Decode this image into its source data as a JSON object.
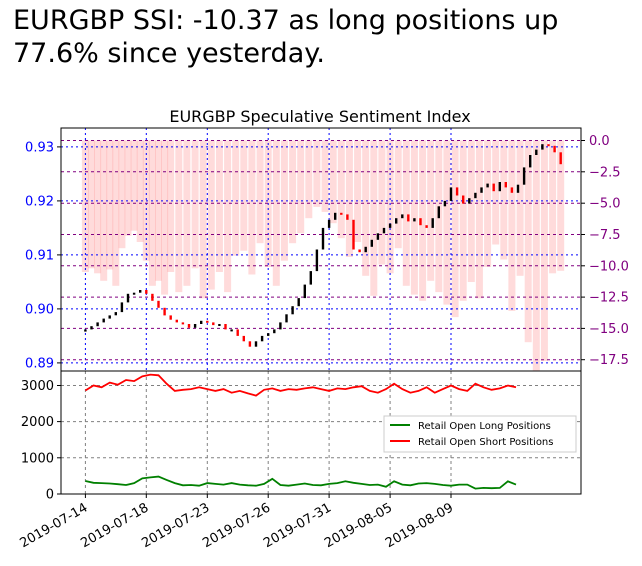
{
  "headline": "EURGBP SSI: -10.37 as long positions up\n77.6% since yesterday.",
  "colors": {
    "price_axis": "#0000ff",
    "ssi_axis": "#800080",
    "ssi_bar": "#ff9999",
    "candle_up": "#000000",
    "candle_down": "#ff0000",
    "long": "#008000",
    "short": "#ff0000",
    "grid": "#808080"
  },
  "chart_data": [
    {
      "type": "candlestick+bar",
      "title": "EURGBP Speculative Sentiment Index",
      "left_axis": {
        "ticks": [
          0.89,
          0.9,
          0.91,
          0.92,
          0.93
        ],
        "tick_labels": [
          "0.89",
          "0.90",
          "0.91",
          "0.92",
          "0.93"
        ],
        "range": [
          0.8885,
          0.9335
        ]
      },
      "right_axis": {
        "ticks": [
          0.0,
          -2.5,
          -5.0,
          -7.5,
          -10.0,
          -12.5,
          -15.0,
          -17.5
        ],
        "tick_labels": [
          "0.0",
          "−2.5",
          "−5.0",
          "−7.5",
          "−10.0",
          "−12.5",
          "−15.0",
          "−17.5"
        ],
        "range": [
          -18.4,
          1.0
        ]
      },
      "grid": {
        "vertical_color": "blue",
        "horizontal_color": "purple",
        "style": "dotted"
      },
      "series": [
        {
          "kind": "price",
          "points": [
            [
              0.0,
              0.8962
            ],
            [
              0.3,
              0.8968
            ],
            [
              0.6,
              0.8975
            ],
            [
              0.9,
              0.8982
            ],
            [
              1.2,
              0.8988
            ],
            [
              1.5,
              0.8994
            ],
            [
              1.8,
              0.9012
            ],
            [
              2.1,
              0.9028
            ],
            [
              2.4,
              0.903
            ],
            [
              2.7,
              0.9035
            ],
            [
              3.0,
              0.9028
            ],
            [
              3.3,
              0.9015
            ],
            [
              3.6,
              0.9002
            ],
            [
              3.9,
              0.8988
            ],
            [
              4.2,
              0.898
            ],
            [
              4.5,
              0.8975
            ],
            [
              4.8,
              0.8972
            ],
            [
              5.1,
              0.8965
            ],
            [
              5.4,
              0.8972
            ],
            [
              5.7,
              0.8978
            ],
            [
              6.0,
              0.8975
            ],
            [
              6.3,
              0.897
            ],
            [
              6.6,
              0.8972
            ],
            [
              6.9,
              0.8962
            ],
            [
              7.2,
              0.8962
            ],
            [
              7.5,
              0.895
            ],
            [
              7.8,
              0.894
            ],
            [
              8.1,
              0.893
            ],
            [
              8.4,
              0.894
            ],
            [
              8.7,
              0.895
            ],
            [
              9.0,
              0.8955
            ],
            [
              9.3,
              0.8962
            ],
            [
              9.6,
              0.8975
            ],
            [
              9.9,
              0.899
            ],
            [
              10.2,
              0.9005
            ],
            [
              10.5,
              0.902
            ],
            [
              10.8,
              0.9045
            ],
            [
              11.1,
              0.907
            ],
            [
              11.4,
              0.911
            ],
            [
              11.7,
              0.915
            ],
            [
              12.0,
              0.9165
            ],
            [
              12.3,
              0.9178
            ],
            [
              12.6,
              0.9175
            ],
            [
              12.9,
              0.9165
            ],
            [
              13.2,
              0.911
            ],
            [
              13.5,
              0.9105
            ],
            [
              13.8,
              0.9115
            ],
            [
              14.1,
              0.9128
            ],
            [
              14.4,
              0.914
            ],
            [
              14.7,
              0.915
            ],
            [
              15.0,
              0.9158
            ],
            [
              15.3,
              0.9168
            ],
            [
              15.6,
              0.9175
            ],
            [
              15.9,
              0.9162
            ],
            [
              16.2,
              0.9168
            ],
            [
              16.5,
              0.9155
            ],
            [
              16.8,
              0.915
            ],
            [
              17.1,
              0.9168
            ],
            [
              17.4,
              0.919
            ],
            [
              17.7,
              0.92
            ],
            [
              18.0,
              0.9225
            ],
            [
              18.3,
              0.921
            ],
            [
              18.6,
              0.9195
            ],
            [
              18.9,
              0.9205
            ],
            [
              19.2,
              0.9215
            ],
            [
              19.5,
              0.9225
            ],
            [
              19.8,
              0.9232
            ],
            [
              20.1,
              0.9218
            ],
            [
              20.4,
              0.9235
            ],
            [
              20.7,
              0.9225
            ],
            [
              21.0,
              0.9215
            ],
            [
              21.3,
              0.923
            ],
            [
              21.6,
              0.9262
            ],
            [
              21.9,
              0.9285
            ],
            [
              22.2,
              0.9295
            ],
            [
              22.5,
              0.9305
            ],
            [
              22.8,
              0.9302
            ],
            [
              23.1,
              0.929
            ],
            [
              23.4,
              0.9268
            ]
          ]
        },
        {
          "kind": "ssi",
          "points": [
            [
              0.0,
              -10.5
            ],
            [
              0.3,
              -10.2
            ],
            [
              0.6,
              -10.6
            ],
            [
              0.9,
              -11.2
            ],
            [
              1.2,
              -10.3
            ],
            [
              1.5,
              -11.6
            ],
            [
              1.8,
              -8.6
            ],
            [
              2.1,
              -7.6
            ],
            [
              2.4,
              -7.2
            ],
            [
              2.7,
              -8.1
            ],
            [
              3.0,
              -9.6
            ],
            [
              3.3,
              -11.6
            ],
            [
              3.6,
              -11.2
            ],
            [
              3.9,
              -12.3
            ],
            [
              4.2,
              -10.5
            ],
            [
              4.6,
              -12.1
            ],
            [
              5.0,
              -11.6
            ],
            [
              5.4,
              -10.2
            ],
            [
              5.8,
              -12.6
            ],
            [
              6.2,
              -11.9
            ],
            [
              6.6,
              -10.5
            ],
            [
              7.0,
              -12.1
            ],
            [
              7.4,
              -9.2
            ],
            [
              7.8,
              -8.8
            ],
            [
              8.2,
              -10.7
            ],
            [
              8.6,
              -8.2
            ],
            [
              9.0,
              -10.1
            ],
            [
              9.4,
              -11.6
            ],
            [
              9.8,
              -9.6
            ],
            [
              10.2,
              -8.2
            ],
            [
              10.6,
              -7.4
            ],
            [
              11.0,
              -6.2
            ],
            [
              11.4,
              -5.3
            ],
            [
              11.8,
              -5.7
            ],
            [
              12.2,
              -6.6
            ],
            [
              12.6,
              -7.8
            ],
            [
              13.0,
              -9.3
            ],
            [
              13.4,
              -8.1
            ],
            [
              13.8,
              -10.8
            ],
            [
              14.2,
              -12.4
            ],
            [
              14.6,
              -9.9
            ],
            [
              15.0,
              -10.6
            ],
            [
              15.4,
              -8.6
            ],
            [
              15.8,
              -11.6
            ],
            [
              16.2,
              -12.3
            ],
            [
              16.6,
              -12.8
            ],
            [
              17.0,
              -11.2
            ],
            [
              17.4,
              -12.1
            ],
            [
              17.8,
              -13.1
            ],
            [
              18.2,
              -14.1
            ],
            [
              18.6,
              -12.8
            ],
            [
              19.0,
              -11.3
            ],
            [
              19.4,
              -12.6
            ],
            [
              19.8,
              -10.1
            ],
            [
              20.2,
              -8.3
            ],
            [
              20.6,
              -9.5
            ],
            [
              21.0,
              -13.6
            ],
            [
              21.4,
              -10.8
            ],
            [
              21.8,
              -16.1
            ],
            [
              22.2,
              -18.4
            ],
            [
              22.6,
              -17.6
            ],
            [
              23.0,
              -10.6
            ],
            [
              23.4,
              -10.4
            ]
          ]
        }
      ]
    },
    {
      "type": "line",
      "y_ticks": [
        0,
        1000,
        2000,
        3000
      ],
      "ylim": [
        0,
        3400
      ],
      "x_ticks": [
        "2019-07-14",
        "2019-07-18",
        "2019-07-23",
        "2019-07-26",
        "2019-07-31",
        "2019-08-05",
        "2019-08-09"
      ],
      "x_tick_positions": [
        0,
        3,
        6,
        9,
        12,
        15,
        18
      ],
      "xlim": [
        -1.2,
        24.4
      ],
      "legend": {
        "placement": "right",
        "entries": [
          "Retail Open Long Positions",
          "Retail Open Short Positions"
        ]
      },
      "series": [
        {
          "name": "Retail Open Long Positions",
          "points": [
            [
              0.0,
              360
            ],
            [
              0.4,
              310
            ],
            [
              0.8,
              300
            ],
            [
              1.2,
              290
            ],
            [
              1.6,
              270
            ],
            [
              2.0,
              250
            ],
            [
              2.4,
              300
            ],
            [
              2.8,
              430
            ],
            [
              3.2,
              460
            ],
            [
              3.6,
              480
            ],
            [
              4.0,
              390
            ],
            [
              4.4,
              300
            ],
            [
              4.8,
              240
            ],
            [
              5.2,
              250
            ],
            [
              5.6,
              230
            ],
            [
              6.0,
              300
            ],
            [
              6.4,
              280
            ],
            [
              6.8,
              260
            ],
            [
              7.2,
              300
            ],
            [
              7.6,
              260
            ],
            [
              8.0,
              240
            ],
            [
              8.4,
              230
            ],
            [
              8.8,
              280
            ],
            [
              9.2,
              420
            ],
            [
              9.6,
              250
            ],
            [
              10.0,
              230
            ],
            [
              10.4,
              260
            ],
            [
              10.8,
              290
            ],
            [
              11.2,
              250
            ],
            [
              11.6,
              240
            ],
            [
              12.0,
              280
            ],
            [
              12.4,
              300
            ],
            [
              12.8,
              350
            ],
            [
              13.2,
              310
            ],
            [
              13.6,
              280
            ],
            [
              14.0,
              250
            ],
            [
              14.4,
              260
            ],
            [
              14.8,
              200
            ],
            [
              15.2,
              350
            ],
            [
              15.6,
              260
            ],
            [
              16.0,
              240
            ],
            [
              16.4,
              290
            ],
            [
              16.8,
              300
            ],
            [
              17.2,
              280
            ],
            [
              17.6,
              250
            ],
            [
              18.0,
              230
            ],
            [
              18.4,
              260
            ],
            [
              18.8,
              260
            ],
            [
              19.2,
              150
            ],
            [
              19.6,
              170
            ],
            [
              20.0,
              160
            ],
            [
              20.4,
              170
            ],
            [
              20.8,
              350
            ],
            [
              21.2,
              260
            ]
          ]
        },
        {
          "name": "Retail Open Short Positions",
          "points": [
            [
              0.0,
              2860
            ],
            [
              0.4,
              3000
            ],
            [
              0.8,
              2950
            ],
            [
              1.2,
              3080
            ],
            [
              1.6,
              3020
            ],
            [
              2.0,
              3150
            ],
            [
              2.4,
              3120
            ],
            [
              2.8,
              3250
            ],
            [
              3.2,
              3300
            ],
            [
              3.6,
              3280
            ],
            [
              4.0,
              3050
            ],
            [
              4.4,
              2850
            ],
            [
              4.8,
              2880
            ],
            [
              5.2,
              2900
            ],
            [
              5.6,
              2950
            ],
            [
              6.0,
              2900
            ],
            [
              6.4,
              2850
            ],
            [
              6.8,
              2900
            ],
            [
              7.2,
              2800
            ],
            [
              7.6,
              2850
            ],
            [
              8.0,
              2780
            ],
            [
              8.4,
              2720
            ],
            [
              8.8,
              2880
            ],
            [
              9.2,
              2920
            ],
            [
              9.6,
              2850
            ],
            [
              10.0,
              2900
            ],
            [
              10.4,
              2880
            ],
            [
              10.8,
              2920
            ],
            [
              11.2,
              2950
            ],
            [
              11.6,
              2900
            ],
            [
              12.0,
              2850
            ],
            [
              12.4,
              2920
            ],
            [
              12.8,
              2900
            ],
            [
              13.2,
              2950
            ],
            [
              13.6,
              2980
            ],
            [
              14.0,
              2850
            ],
            [
              14.4,
              2800
            ],
            [
              14.8,
              2900
            ],
            [
              15.2,
              3050
            ],
            [
              15.6,
              2900
            ],
            [
              16.0,
              2800
            ],
            [
              16.4,
              2850
            ],
            [
              16.8,
              2950
            ],
            [
              17.2,
              2800
            ],
            [
              17.6,
              2900
            ],
            [
              18.0,
              3000
            ],
            [
              18.4,
              2900
            ],
            [
              18.8,
              2850
            ],
            [
              19.2,
              3050
            ],
            [
              19.6,
              2950
            ],
            [
              20.0,
              2880
            ],
            [
              20.4,
              2920
            ],
            [
              20.8,
              3000
            ],
            [
              21.2,
              2950
            ]
          ]
        }
      ]
    }
  ]
}
